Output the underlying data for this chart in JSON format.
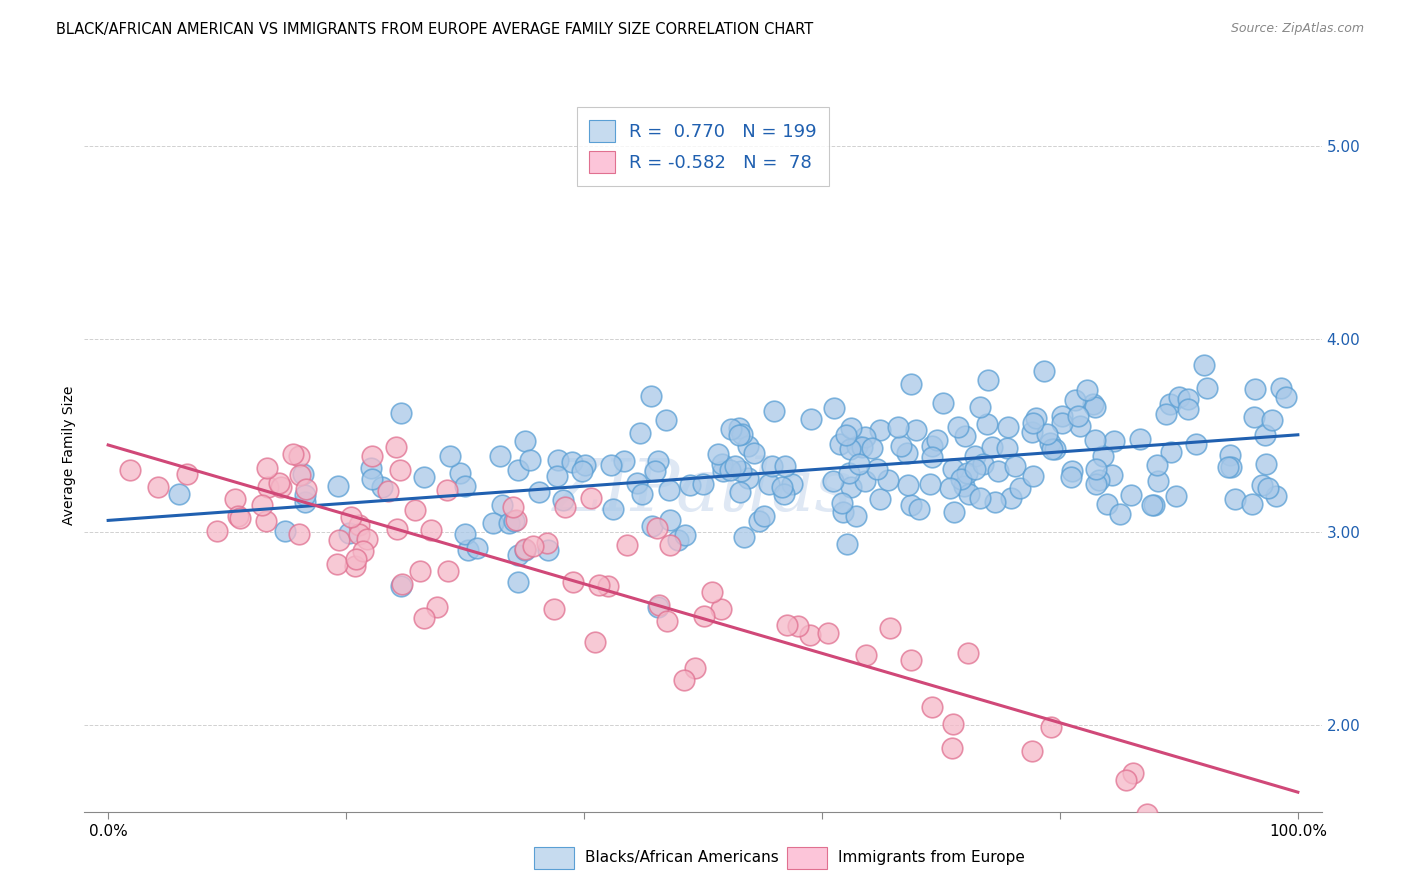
{
  "title": "BLACK/AFRICAN AMERICAN VS IMMIGRANTS FROM EUROPE AVERAGE FAMILY SIZE CORRELATION CHART",
  "source": "Source: ZipAtlas.com",
  "ylabel": "Average Family Size",
  "ytick_labels": [
    "2.00",
    "3.00",
    "4.00",
    "5.00"
  ],
  "ytick_values": [
    2.0,
    3.0,
    4.0,
    5.0
  ],
  "ylim": [
    1.55,
    5.25
  ],
  "xlim": [
    -0.02,
    1.02
  ],
  "blue_dot_color": "#a8c8e8",
  "blue_dot_edge": "#5a9fd4",
  "pink_dot_color": "#f5b8c8",
  "pink_dot_edge": "#e07090",
  "blue_line_color": "#2060b0",
  "pink_line_color": "#d04878",
  "blue_legend_fill": "#c6dbef",
  "pink_legend_fill": "#fcc5d9",
  "blue_legend_edge": "#5a9fd4",
  "pink_legend_edge": "#e07090",
  "watermark_color": "#b8cce8",
  "watermark_text": "ZIPatlas",
  "legend_label_blue": "Blacks/African Americans",
  "legend_label_pink": "Immigrants from Europe",
  "blue_R": 0.77,
  "blue_N": 199,
  "pink_R": -0.582,
  "pink_N": 78,
  "blue_intercept": 3.05,
  "blue_slope": 0.48,
  "pink_intercept": 3.42,
  "pink_slope": -1.75,
  "blue_noise": 0.19,
  "pink_noise": 0.21,
  "background_color": "#ffffff",
  "grid_color": "#cccccc",
  "title_fontsize": 10.5,
  "source_fontsize": 9,
  "tick_fontsize": 11,
  "dot_size": 220,
  "dot_linewidth": 1.2,
  "line_width": 2.2
}
